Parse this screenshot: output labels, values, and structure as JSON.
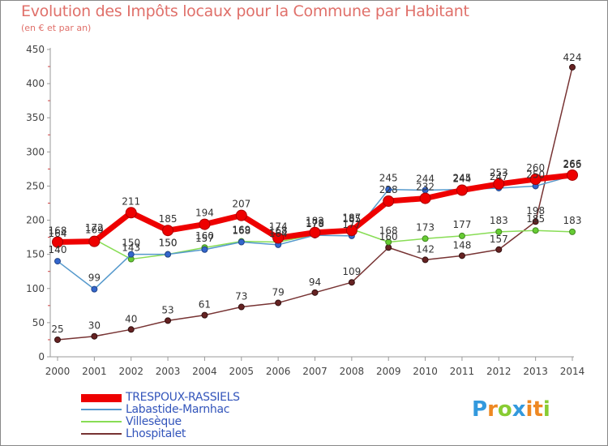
{
  "chart_data": {
    "type": "line",
    "title": "Evolution des Impôts locaux pour la Commune par Habitant",
    "subtitle": "(en € et par an)",
    "x": [
      "2000",
      "2001",
      "2002",
      "2003",
      "2004",
      "2005",
      "2006",
      "2007",
      "2008",
      "2009",
      "2010",
      "2011",
      "2012",
      "2013",
      "2014"
    ],
    "y_ticks": [
      "0",
      "50",
      "100",
      "150",
      "200",
      "250",
      "300",
      "350",
      "400",
      "450"
    ],
    "ylim": [
      0,
      450
    ],
    "grid": false,
    "legend_position": "bottom-left",
    "series": [
      {
        "name": "TRESPOUX-RASSIELS",
        "color": "#ee0000",
        "values": [
          168,
          169,
          211,
          185,
          194,
          207,
          174,
          182,
          185,
          228,
          232,
          244,
          253,
          260,
          266
        ],
        "labels": [
          "168",
          "169",
          "211",
          "185",
          "194",
          "207",
          "174",
          "182",
          "185",
          "228",
          "232",
          "244",
          "253",
          "260",
          "266"
        ]
      },
      {
        "name": "Labastide-Marnhac",
        "color": "#5599cc",
        "values": [
          140,
          99,
          150,
          150,
          157,
          168,
          164,
          178,
          177,
          245,
          244,
          245,
          247,
          250,
          265
        ],
        "labels": [
          "140",
          "99",
          "150",
          "150",
          "157",
          "168",
          "164",
          "178",
          "177",
          "245",
          "244",
          "245",
          "247",
          "250",
          "265"
        ]
      },
      {
        "name": "Villesèque",
        "color": "#88dd55",
        "values": [
          164,
          172,
          143,
          150,
          160,
          169,
          168,
          179,
          187,
          168,
          173,
          177,
          183,
          185,
          183
        ],
        "labels": [
          "164",
          "172",
          "143",
          "150",
          "160",
          "169",
          "168",
          "179",
          "187",
          "168",
          "173",
          "177",
          "183",
          "185",
          "183"
        ]
      },
      {
        "name": "Lhospitalet",
        "color": "#773333",
        "values": [
          25,
          30,
          40,
          53,
          61,
          73,
          79,
          94,
          109,
          160,
          142,
          148,
          157,
          198,
          424
        ],
        "labels": [
          "25",
          "30",
          "40",
          "53",
          "61",
          "73",
          "79",
          "94",
          "109",
          "160",
          "142",
          "148",
          "157",
          "198",
          "424"
        ]
      }
    ]
  },
  "logo": {
    "letters": [
      "P",
      "r",
      "o",
      "x",
      "i",
      "t",
      "i"
    ],
    "colors": [
      "#3399dd",
      "#ee8822",
      "#88cc33",
      "#3399dd",
      "#ee8822",
      "#ee8822",
      "#88cc33"
    ]
  }
}
